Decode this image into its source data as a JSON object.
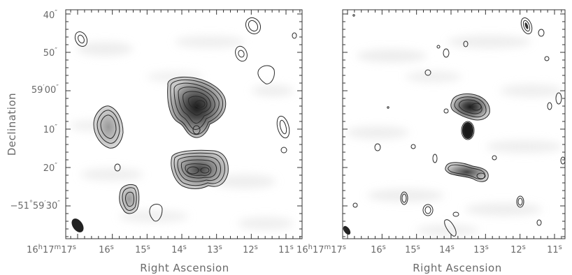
{
  "figure": {
    "ylabel": "Declination",
    "xlabel_left": "Right Ascension",
    "xlabel_right": "Right Ascension"
  },
  "chart_data": [
    {
      "type": "contour",
      "panel": "left",
      "xlabel": "Right Ascension",
      "ylabel": "Declination",
      "x_ticks": [
        "16h17m17s",
        "16s",
        "15s",
        "14s",
        "13s",
        "12s",
        "11s"
      ],
      "y_ticks": [
        "40\"",
        "50\"",
        "59'00\"",
        "10\"",
        "20\"",
        "−51°59'30\""
      ],
      "x_range_seconds": [
        17.3,
        10.3
      ],
      "y_range_arcsec": [
        -21,
        66
      ],
      "sources": [
        {
          "name": "central-upper",
          "ra_s": 13.4,
          "dec_arcsec": 5,
          "peak": "dark"
        },
        {
          "name": "central-lower",
          "ra_s": 13.3,
          "dec_arcsec": 21,
          "peak": "medium"
        },
        {
          "name": "west",
          "ra_s": 15.8,
          "dec_arcsec": 9,
          "peak": "light"
        },
        {
          "name": "south-west",
          "ra_s": 15.3,
          "dec_arcsec": 34,
          "peak": "light"
        }
      ],
      "beam": {
        "ra_s": 17.0,
        "dec_arcsec": 42
      }
    },
    {
      "type": "contour",
      "panel": "right",
      "xlabel": "Right Ascension",
      "ylabel": "Declination",
      "x_ticks": [
        "16h17m17s",
        "16s",
        "15s",
        "14s",
        "13s",
        "12s",
        "11s"
      ],
      "x_range_seconds": [
        17.3,
        10.3
      ],
      "sources": [
        {
          "name": "central-upper",
          "ra_s": 13.5,
          "dec_arcsec": 5,
          "peak": "dark"
        },
        {
          "name": "compact-core",
          "ra_s": 13.5,
          "dec_arcsec": 11,
          "peak": "dark"
        },
        {
          "name": "central-lower",
          "ra_s": 13.6,
          "dec_arcsec": 21,
          "peak": "medium"
        }
      ],
      "beam": {
        "ra_s": 17.0,
        "dec_arcsec": 42
      }
    }
  ],
  "tick_text": {
    "x": [
      "17",
      "16",
      "15",
      "14",
      "13",
      "12",
      "11"
    ],
    "x_prefix": "16",
    "h": "h",
    "m": "m",
    "s": "s",
    "y_left": [
      {
        "main": "40",
        "unit": "″"
      },
      {
        "main": "50",
        "unit": "″"
      },
      {
        "main": "59",
        "unit2": "′",
        "main2": "00",
        "unit": "″"
      },
      {
        "main": "10",
        "unit": "″"
      },
      {
        "main": "20",
        "unit": "″"
      },
      {
        "main": "−51",
        "deg": "°",
        "main1": "59",
        "unit2": "′",
        "main2": "30",
        "unit": "″"
      }
    ]
  }
}
